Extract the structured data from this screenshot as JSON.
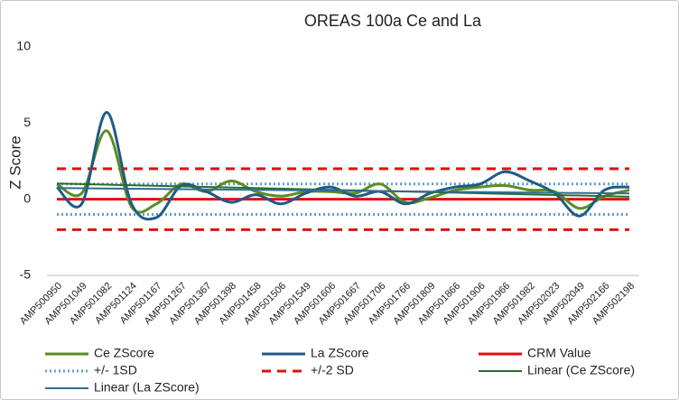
{
  "chart_data": {
    "type": "line",
    "title": "OREAS 100a Ce and La",
    "y_label": "Z Score",
    "categories": [
      "AMP500950",
      "AMP501049",
      "AMP501082",
      "AMP501124",
      "AMP501167",
      "AMP501267",
      "AMP501367",
      "AMP501398",
      "AMP501458",
      "AMP501506",
      "AMP501549",
      "AMP501606",
      "AMP501667",
      "AMP501706",
      "AMP501766",
      "AMP501809",
      "AMP501866",
      "AMP501906",
      "AMP501966",
      "AMP501982",
      "AMP502023",
      "AMP502049",
      "AMP502166",
      "AMP502198"
    ],
    "series": [
      {
        "name": "Ce ZScore",
        "color": "#5b8c1f",
        "values": [
          1.0,
          0.4,
          4.5,
          -0.5,
          -0.3,
          1.0,
          0.5,
          1.2,
          0.5,
          0.2,
          0.5,
          0.5,
          0.4,
          1.0,
          -0.2,
          0.1,
          0.6,
          0.8,
          0.9,
          0.6,
          0.5,
          -0.6,
          0.2,
          0.6
        ]
      },
      {
        "name": "La ZScore",
        "color": "#1f5a87",
        "values": [
          0.8,
          -0.3,
          5.7,
          -0.3,
          -1.2,
          0.9,
          0.5,
          -0.2,
          0.3,
          -0.3,
          0.4,
          0.8,
          0.2,
          0.5,
          -0.3,
          0.4,
          0.8,
          1.0,
          1.8,
          1.2,
          0.4,
          -1.1,
          0.6,
          0.8
        ]
      }
    ],
    "reference_lines": [
      {
        "name": "CRM Value",
        "color": "#e01010",
        "style": "solid",
        "levels": [
          0
        ]
      },
      {
        "name": "+/- 1SD",
        "color": "#5aa3d0",
        "style": "dotted",
        "levels": [
          1,
          -1
        ]
      },
      {
        "name": "+/-2 SD",
        "color": "#e01010",
        "style": "dashed",
        "levels": [
          2,
          -2
        ]
      }
    ],
    "trendlines": [
      {
        "name": "Linear (Ce ZScore)",
        "of": "Ce ZScore",
        "color": "#2d6a2d"
      },
      {
        "name": "Linear (La ZScore)",
        "of": "La ZScore",
        "color": "#2c6f92"
      }
    ],
    "ylim": [
      -5,
      10
    ],
    "yticks": [
      -5,
      0,
      5,
      10
    ],
    "grid": false,
    "legend": "bottom"
  }
}
